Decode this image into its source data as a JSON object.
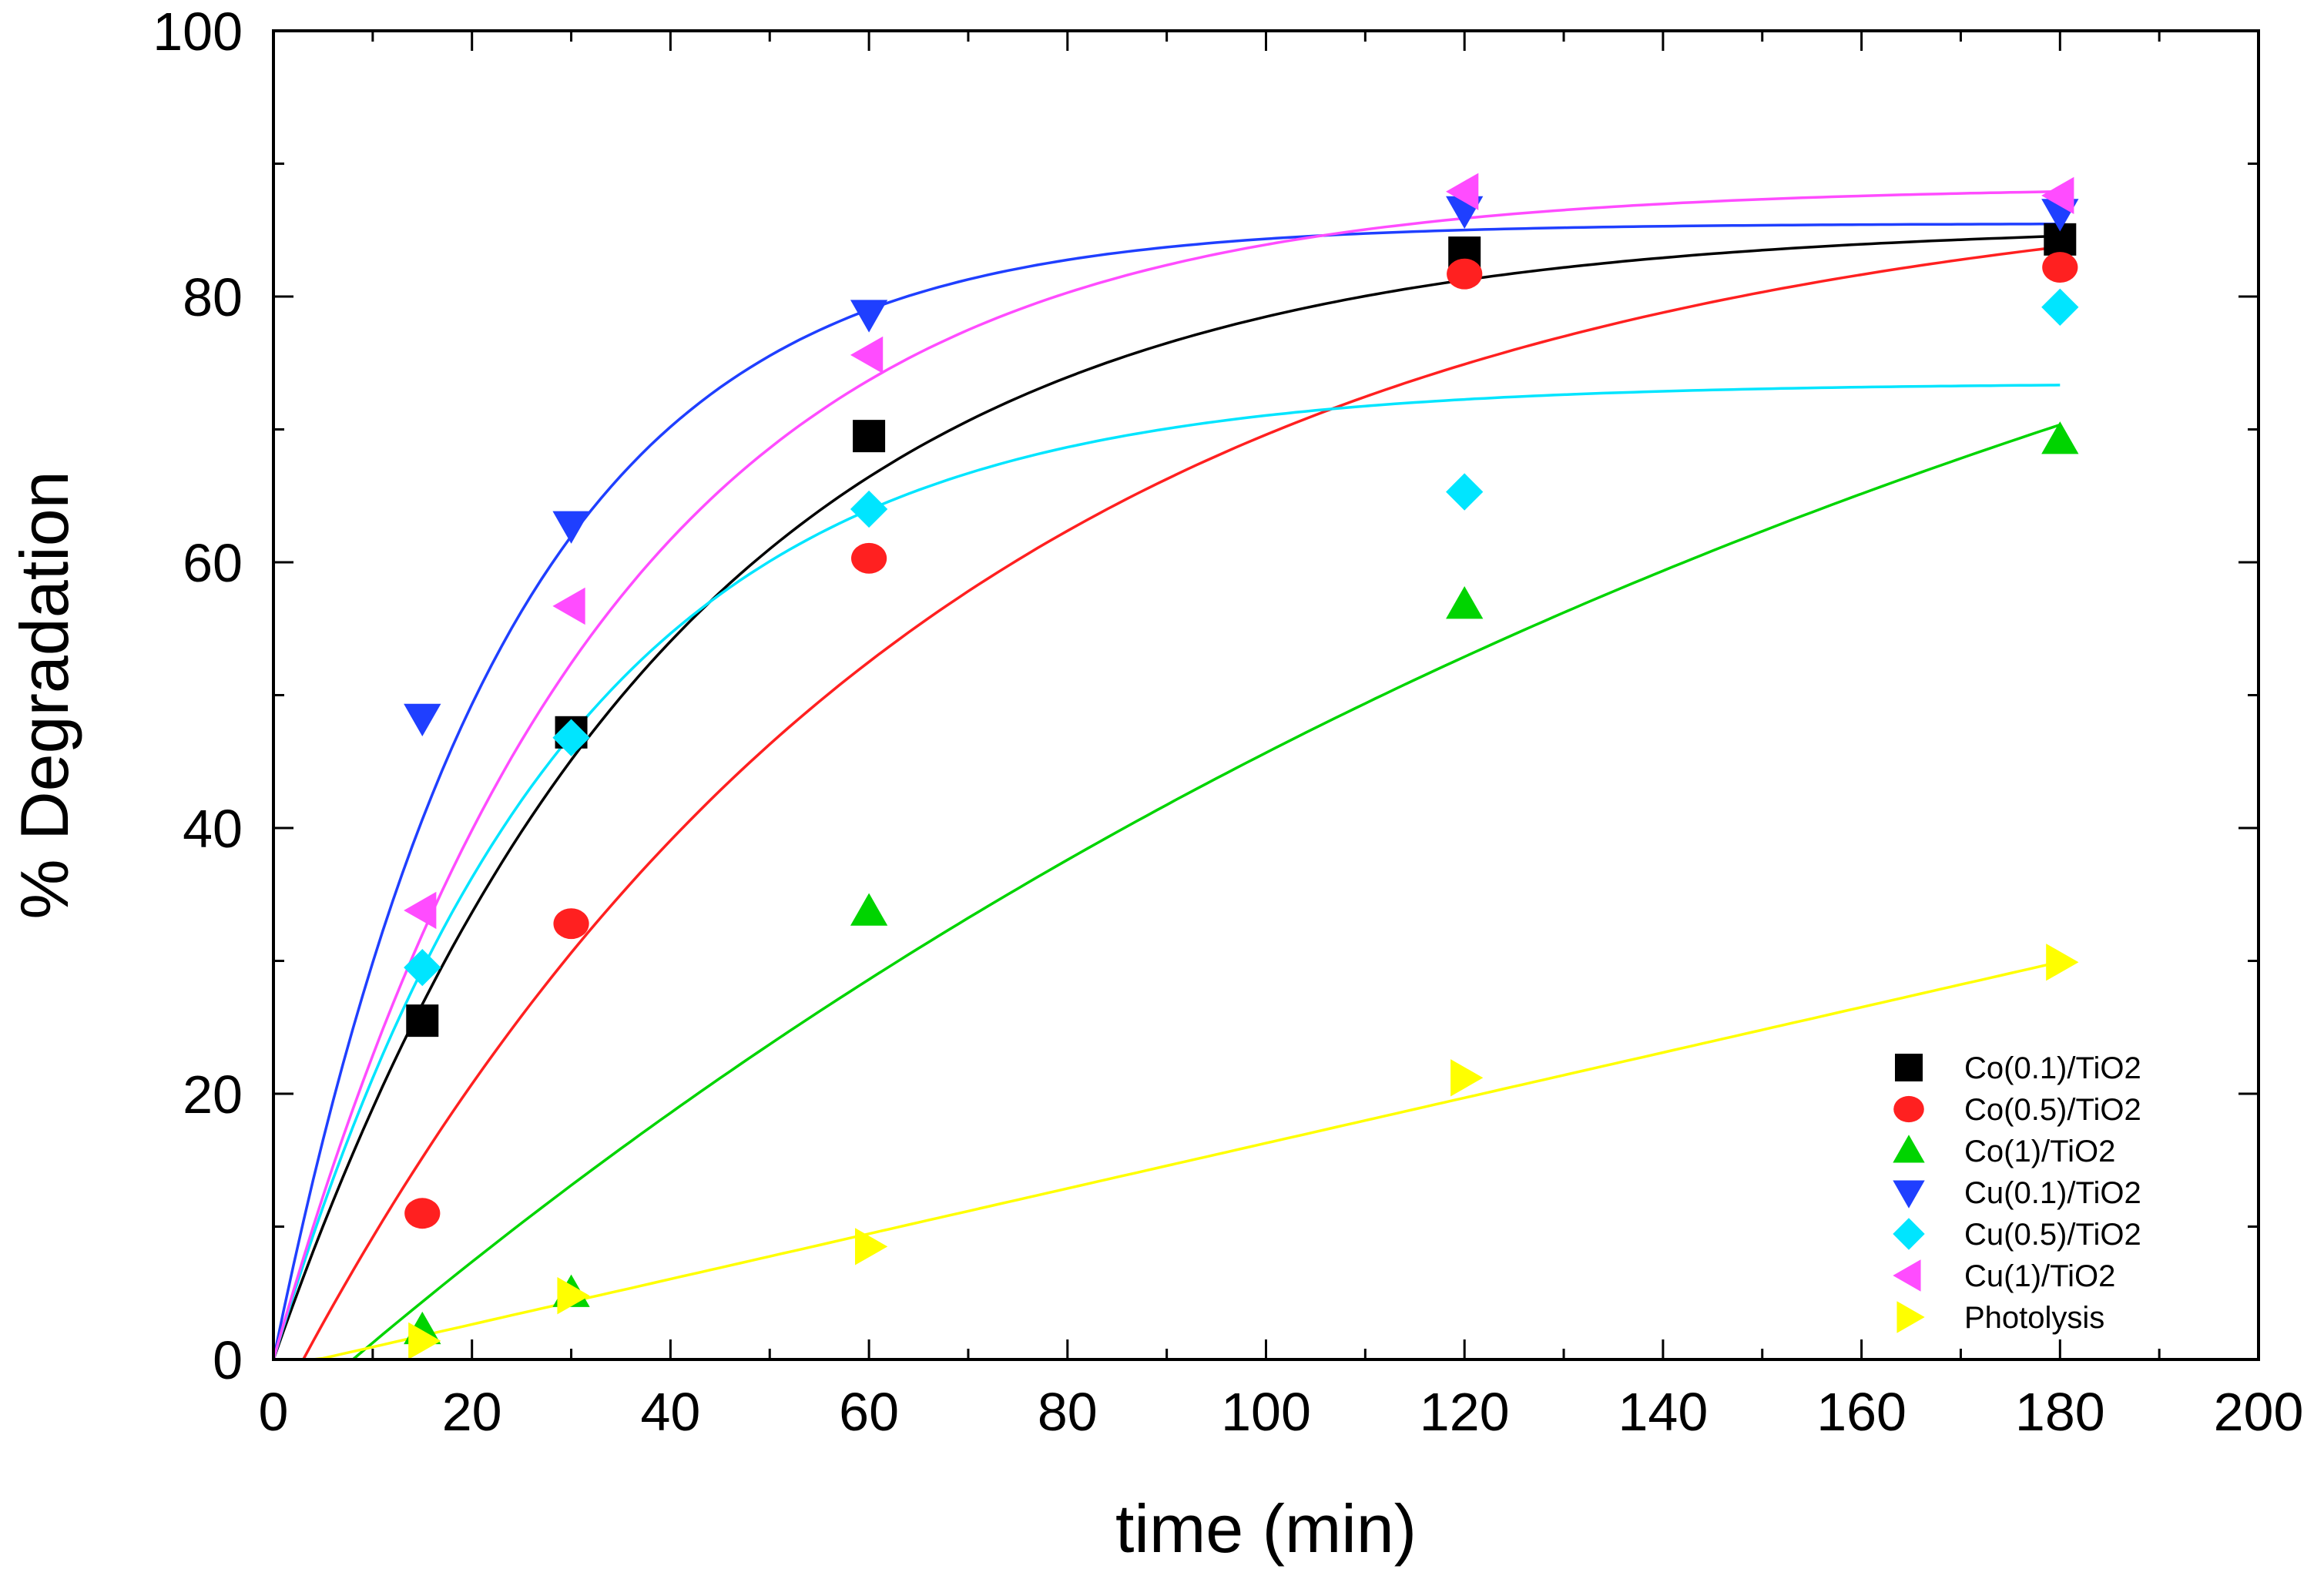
{
  "chart_data": {
    "type": "scatter",
    "title": "",
    "xlabel": "time (min)",
    "ylabel": "% Degradation",
    "xlim": [
      0,
      200
    ],
    "ylim": [
      0,
      100
    ],
    "xticks": [
      0,
      20,
      40,
      60,
      80,
      100,
      120,
      140,
      160,
      180,
      200
    ],
    "yticks": [
      0,
      20,
      40,
      60,
      80,
      100
    ],
    "grid": false,
    "legend_position": "bottom-right",
    "series": [
      {
        "name": "Co(0.1)/TiO2",
        "color": "#000000",
        "marker": "square",
        "x": [
          15,
          30,
          60,
          120,
          180
        ],
        "y": [
          25.5,
          47.2,
          69.5,
          83.3,
          84.3
        ],
        "fit": {
          "model": "exp",
          "a": 85.5,
          "k": 0.025
        }
      },
      {
        "name": "Co(0.5)/TiO2",
        "color": "#ff2020",
        "marker": "circle",
        "x": [
          15,
          30,
          60,
          120,
          180
        ],
        "y": [
          11.0,
          32.8,
          60.3,
          81.7,
          82.2
        ],
        "fit": {
          "model": "exp",
          "a": 89.5,
          "k": 0.0155,
          "t0": 3
        }
      },
      {
        "name": "Co(1)/TiO2",
        "color": "#00d400",
        "marker": "triangle-up",
        "x": [
          15,
          30,
          60,
          120,
          180
        ],
        "y": [
          2.2,
          5.0,
          33.7,
          56.8,
          69.2
        ],
        "fit": {
          "model": "exp",
          "a": 115,
          "k": 0.0055,
          "t0": 8
        }
      },
      {
        "name": "Cu(0.1)/TiO2",
        "color": "#1f3fff",
        "marker": "triangle-down",
        "x": [
          15,
          30,
          60,
          120,
          180
        ],
        "y": [
          48.3,
          62.8,
          78.7,
          86.5,
          86.3
        ],
        "fit": {
          "model": "exp",
          "a": 85.5,
          "k": 0.043
        }
      },
      {
        "name": "Cu(0.5)/TiO2",
        "color": "#00e5ff",
        "marker": "diamond",
        "x": [
          15,
          30,
          60,
          120,
          180
        ],
        "y": [
          29.5,
          46.8,
          64.0,
          65.3,
          79.2
        ],
        "fit": {
          "model": "exp",
          "a": 73.5,
          "k": 0.034
        }
      },
      {
        "name": "Cu(1)/TiO2",
        "color": "#ff4cff",
        "marker": "triangle-left",
        "x": [
          15,
          30,
          60,
          120,
          180
        ],
        "y": [
          33.8,
          56.7,
          75.6,
          87.9,
          87.6
        ],
        "fit": {
          "model": "exp",
          "a": 88.3,
          "k": 0.03
        }
      },
      {
        "name": "Photolysis",
        "color": "#ffff00",
        "marker": "triangle-right",
        "x": [
          15,
          30,
          60,
          120,
          180
        ],
        "y": [
          1.4,
          4.8,
          8.5,
          21.2,
          29.9
        ],
        "fit": {
          "model": "linear",
          "m": 0.1705,
          "t0": 4.5
        }
      }
    ]
  }
}
